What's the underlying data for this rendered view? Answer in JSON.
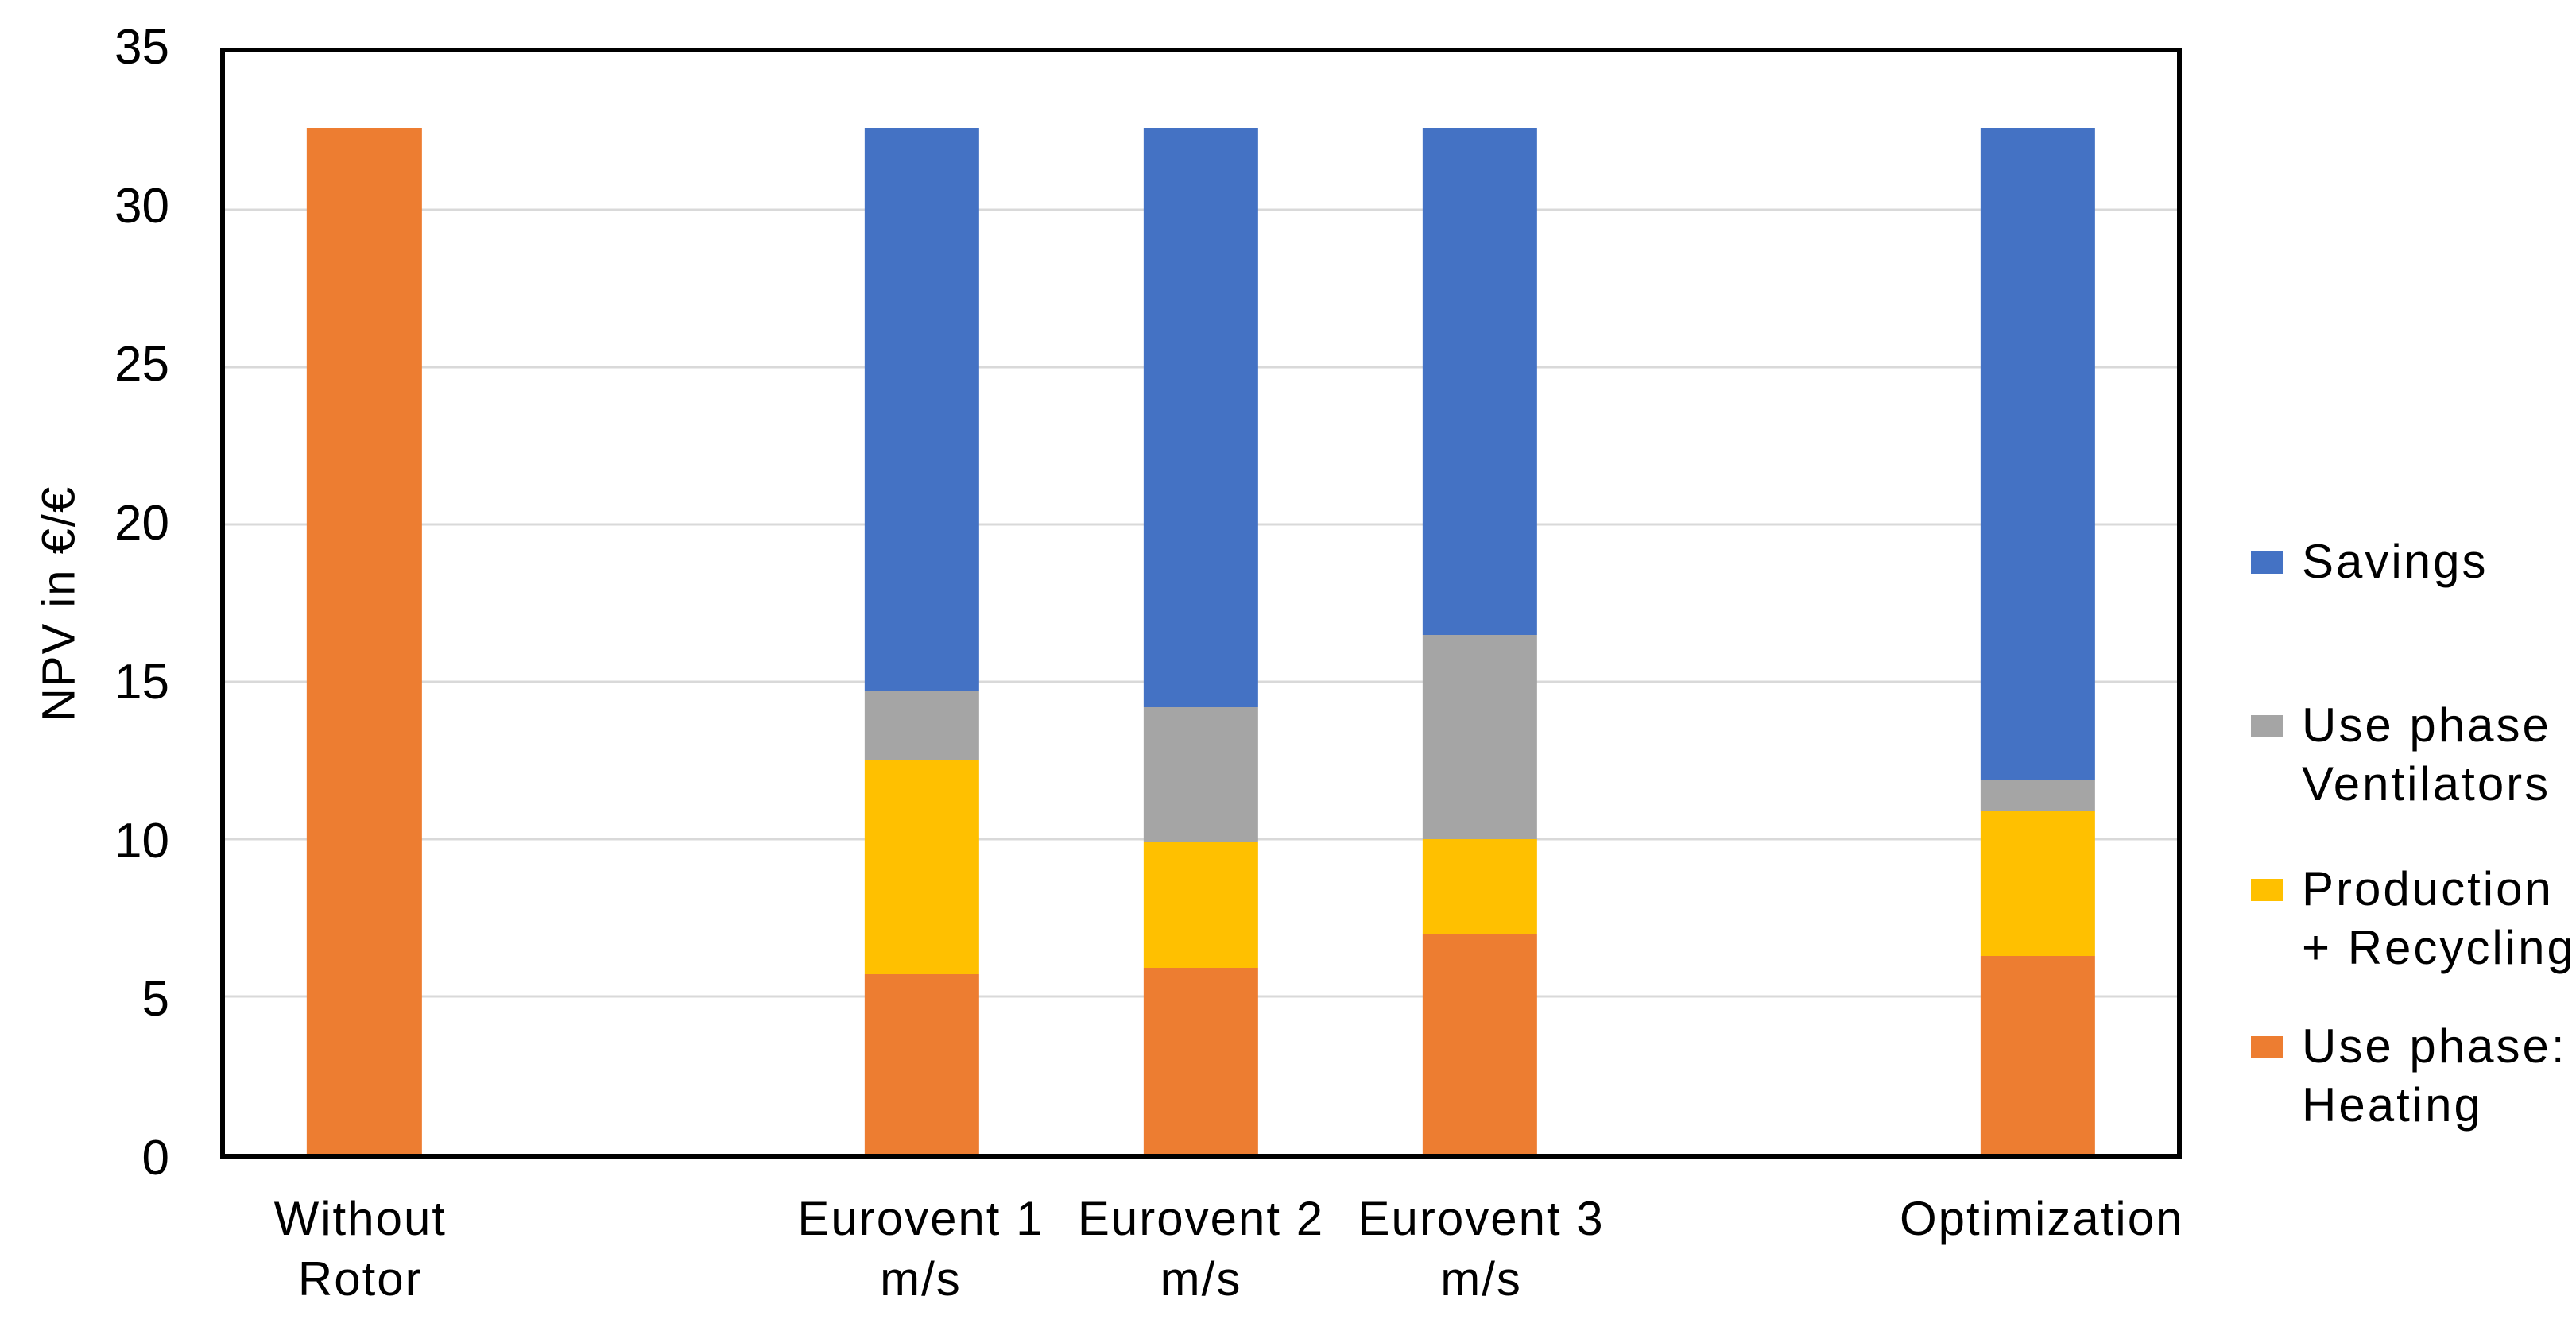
{
  "colors": {
    "background": "#FFFFFF",
    "axis_border": "#000000",
    "gridline": "#D9D9D9",
    "savings_blue": "#4472C4",
    "ventilators_gray": "#A5A5A5",
    "production_yellow": "#FFC000",
    "heating_orange": "#ED7D31"
  },
  "chart_data": {
    "type": "bar",
    "stacked": true,
    "title": "",
    "xlabel": "",
    "ylabel": "NPV in €/€",
    "ylim": [
      0,
      35
    ],
    "yticks": [
      0,
      5,
      10,
      15,
      20,
      25,
      30,
      35
    ],
    "grid": true,
    "legend_position": "right",
    "total_slots": 7,
    "category_slots": [
      0,
      2,
      3,
      4,
      6
    ],
    "categories": [
      "Without\nRotor",
      "Eurovent 1\nm/s",
      "Eurovent 2\nm/s",
      "Eurovent 3\nm/s",
      "Optimization"
    ],
    "series": [
      {
        "name": "Use phase: Heating",
        "color": "#ED7D31",
        "values": [
          32.6,
          5.7,
          5.9,
          7.0,
          6.3
        ]
      },
      {
        "name": "Production + Recycling",
        "color": "#FFC000",
        "values": [
          0,
          6.8,
          4.0,
          3.0,
          4.6
        ]
      },
      {
        "name": "Use phase Ventilators",
        "color": "#A5A5A5",
        "values": [
          0,
          2.2,
          4.3,
          6.5,
          1.0
        ]
      },
      {
        "name": "Savings",
        "color": "#4472C4",
        "values": [
          0,
          17.9,
          18.4,
          16.1,
          20.7
        ]
      }
    ],
    "stack_totals": [
      32.6,
      32.6,
      32.6,
      32.6,
      32.6
    ],
    "legend": [
      {
        "label": "Savings",
        "color": "#4472C4"
      },
      {
        "label": "Use phase\nVentilators",
        "color": "#A5A5A5"
      },
      {
        "label": "Production\n+ Recycling",
        "color": "#FFC000"
      },
      {
        "label": "Use phase:\nHeating",
        "color": "#ED7D31"
      }
    ]
  }
}
